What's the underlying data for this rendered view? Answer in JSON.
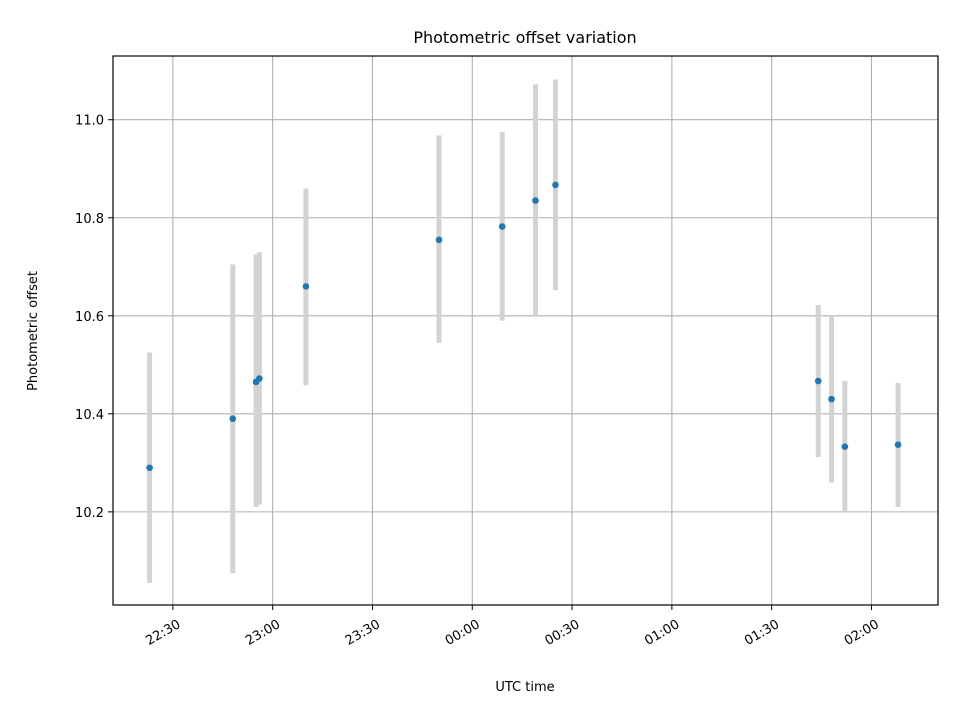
{
  "chart_data": {
    "type": "scatter",
    "title": "Photometric offset variation",
    "xlabel": "UTC time",
    "ylabel": "Photometric offset",
    "x_axis": "time",
    "x_ticks": [
      "22:30",
      "23:00",
      "23:30",
      "00:00",
      "00:30",
      "01:00",
      "01:30",
      "02:00"
    ],
    "x_range": [
      "22:12",
      "02:20"
    ],
    "y_ticks": [
      10.2,
      10.4,
      10.6,
      10.8,
      11.0
    ],
    "ylim": [
      10.01,
      11.13
    ],
    "grid": true,
    "marker_color": "#1f77b4",
    "errorbar_color": "#d3d3d3",
    "points": [
      {
        "x": "22:23",
        "y": 10.29,
        "ylow": 10.055,
        "yhigh": 10.525
      },
      {
        "x": "22:48",
        "y": 10.39,
        "ylow": 10.075,
        "yhigh": 10.705
      },
      {
        "x": "22:55",
        "y": 10.465,
        "ylow": 10.21,
        "yhigh": 10.725
      },
      {
        "x": "22:56",
        "y": 10.472,
        "ylow": 10.215,
        "yhigh": 10.73
      },
      {
        "x": "23:10",
        "y": 10.66,
        "ylow": 10.458,
        "yhigh": 10.86
      },
      {
        "x": "23:50",
        "y": 10.755,
        "ylow": 10.545,
        "yhigh": 10.968
      },
      {
        "x": "00:09",
        "y": 10.782,
        "ylow": 10.59,
        "yhigh": 10.975
      },
      {
        "x": "00:19",
        "y": 10.835,
        "ylow": 10.6,
        "yhigh": 11.072
      },
      {
        "x": "00:25",
        "y": 10.867,
        "ylow": 10.652,
        "yhigh": 11.082
      },
      {
        "x": "01:44",
        "y": 10.467,
        "ylow": 10.312,
        "yhigh": 10.622
      },
      {
        "x": "01:48",
        "y": 10.43,
        "ylow": 10.26,
        "yhigh": 10.6
      },
      {
        "x": "01:52",
        "y": 10.333,
        "ylow": 10.2,
        "yhigh": 10.467
      },
      {
        "x": "02:08",
        "y": 10.337,
        "ylow": 10.21,
        "yhigh": 10.463
      }
    ]
  }
}
